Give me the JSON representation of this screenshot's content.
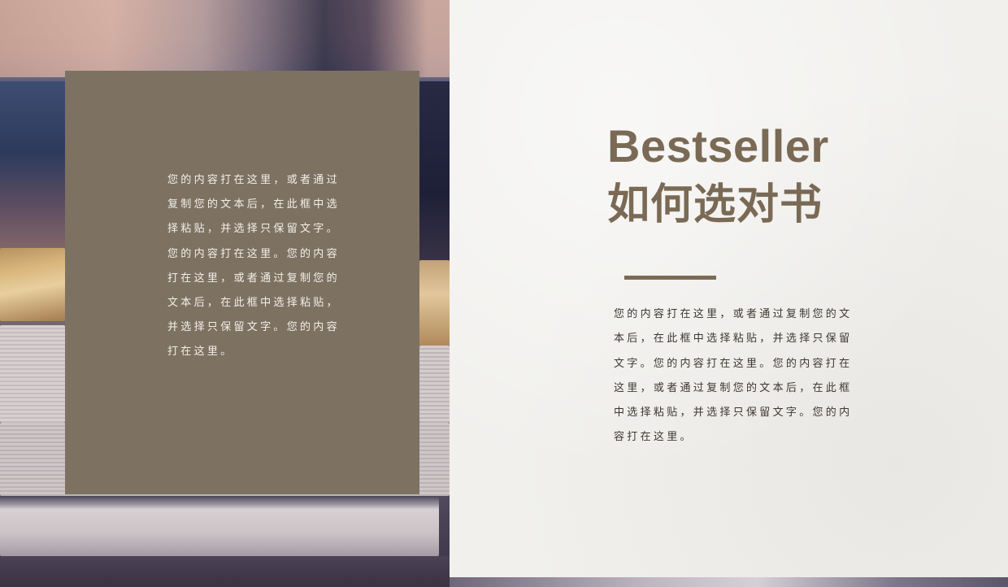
{
  "slide": {
    "card": {
      "text": "您的内容打在这里，或者通过复制您的文本后，在此框中选择粘贴，并选择只保留文字。您的内容打在这里。您的内容打在这里，或者通过复制您的文本后，在此框中选择粘贴，并选择只保留文字。您的内容打在这里。"
    },
    "title_en": "Bestseller",
    "title_zh": "如何选对书",
    "body": "您的内容打在这里，或者通过复制您的文本后，在此框中选择粘贴，并选择只保留文字。您的内容打在这里。您的内容打在这里，或者通过复制您的文本后，在此框中选择粘贴，并选择只保留文字。您的内容打在这里。",
    "colors": {
      "accent": "#7a6a55",
      "card_bg": "#7d7262",
      "paper_bg": "#f1f0ed"
    }
  }
}
